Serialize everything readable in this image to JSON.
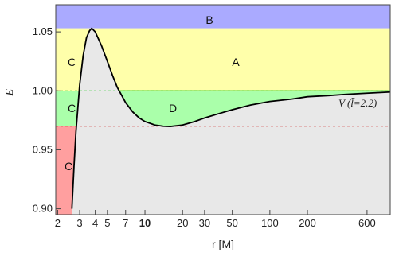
{
  "chart_data": {
    "type": "line",
    "xlabel": "r [M]",
    "ylabel": "E",
    "x_scale": "log",
    "xlim": [
      1.93,
      920
    ],
    "ylim": [
      0.895,
      1.073
    ],
    "x_ticks": [
      {
        "value": 2,
        "label": "2"
      },
      {
        "value": 3,
        "label": "3"
      },
      {
        "value": 4,
        "label": "4"
      },
      {
        "value": 5,
        "label": "5"
      },
      {
        "value": 7,
        "label": "7"
      },
      {
        "value": 10,
        "label": "10",
        "bold": true
      },
      {
        "value": 20,
        "label": "20"
      },
      {
        "value": 30,
        "label": "30"
      },
      {
        "value": 50,
        "label": "50"
      },
      {
        "value": 100,
        "label": "100"
      },
      {
        "value": 200,
        "label": "200"
      },
      {
        "value": 600,
        "label": "600"
      }
    ],
    "y_ticks": [
      {
        "value": 0.9,
        "label": "0.90"
      },
      {
        "value": 0.95,
        "label": "0.95"
      },
      {
        "value": 1.0,
        "label": "1.00"
      },
      {
        "value": 1.05,
        "label": "1.05"
      }
    ],
    "series": [
      {
        "name": "V (l̃=2.2)",
        "color": "#000000",
        "points": [
          [
            2.6,
            0.9
          ],
          [
            2.7,
            0.935
          ],
          [
            2.8,
            0.965
          ],
          [
            3.0,
            1.005
          ],
          [
            3.2,
            1.03
          ],
          [
            3.4,
            1.045
          ],
          [
            3.6,
            1.051
          ],
          [
            3.75,
            1.053
          ],
          [
            4.0,
            1.05
          ],
          [
            4.5,
            1.038
          ],
          [
            5.0,
            1.025
          ],
          [
            5.5,
            1.013
          ],
          [
            6.0,
            1.003
          ],
          [
            7.0,
            0.99
          ],
          [
            8.0,
            0.982
          ],
          [
            9.0,
            0.977
          ],
          [
            10.0,
            0.974
          ],
          [
            12.0,
            0.971
          ],
          [
            14.0,
            0.97
          ],
          [
            16.0,
            0.9698
          ],
          [
            20.0,
            0.971
          ],
          [
            25.0,
            0.974
          ],
          [
            30.0,
            0.977
          ],
          [
            40.0,
            0.981
          ],
          [
            50.0,
            0.984
          ],
          [
            70.0,
            0.988
          ],
          [
            100.0,
            0.991
          ],
          [
            150.0,
            0.993
          ],
          [
            200.0,
            0.995
          ],
          [
            300.0,
            0.996
          ],
          [
            400.0,
            0.997
          ],
          [
            600.0,
            0.998
          ],
          [
            920.0,
            0.999
          ]
        ]
      }
    ],
    "reference_lines": [
      {
        "y": 1.0,
        "color": "#22cc22",
        "style": "dashed"
      },
      {
        "y": 0.97,
        "color": "#cc2222",
        "style": "dashed"
      }
    ],
    "regions": [
      {
        "label": "A",
        "color": "#ffffaa"
      },
      {
        "label": "B",
        "color": "#aaaaff"
      },
      {
        "label": "C",
        "color": "#ffffaa"
      },
      {
        "label": "C",
        "color": "#aaffaa"
      },
      {
        "label": "C",
        "color": "#ff9f9f"
      },
      {
        "label": "D",
        "color": "#aaffaa"
      }
    ],
    "curve_label": "V (l̃=2.2)",
    "grid": false
  }
}
